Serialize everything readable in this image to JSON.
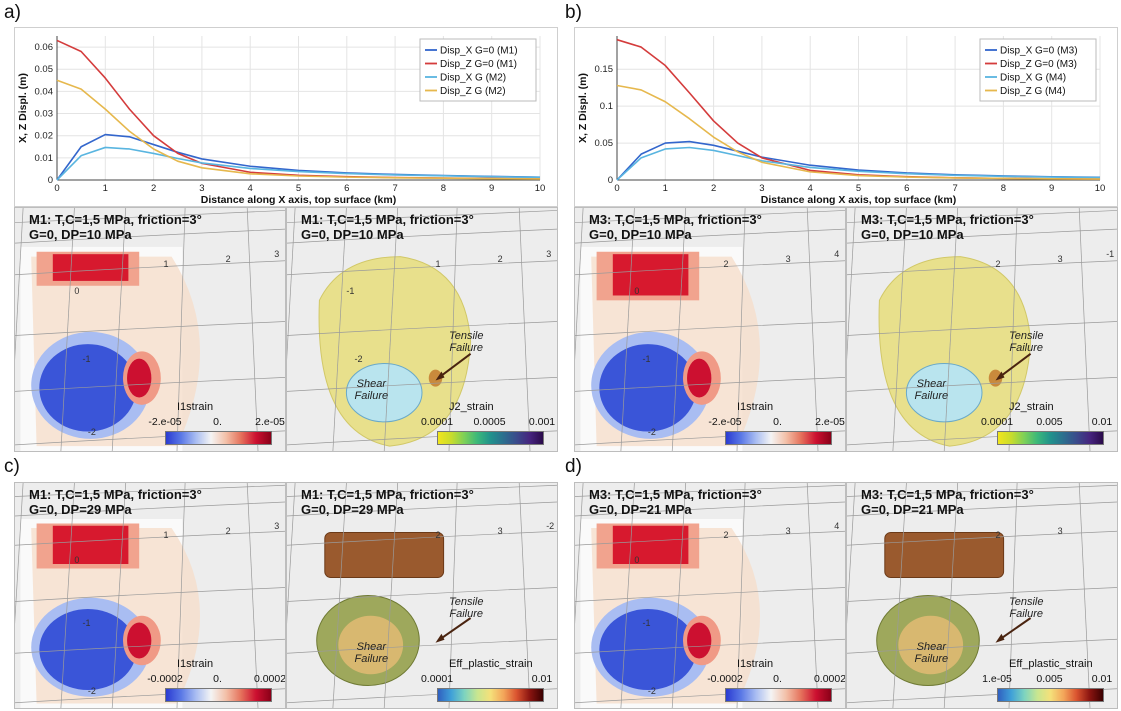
{
  "figure": {
    "panel_labels": [
      "a)",
      "b)",
      "c)",
      "d)"
    ],
    "colors": {
      "disp_x_G0": "#3366cc",
      "disp_z_G0": "#d43c3c",
      "disp_x_G": "#59b5e0",
      "disp_z_G": "#e6b84d",
      "strain_pos": "#d7192e",
      "strain_neg": "#3a55d8",
      "tensile_failure": "#8a4a22",
      "shear_failure": "#c7b27a"
    }
  },
  "chart_data": [
    {
      "type": "line",
      "panel": "a)",
      "xlabel": "Distance along X axis, top surface (km)",
      "ylabel": "X, Z Displ. (m)",
      "xlim": [
        0,
        10
      ],
      "ylim": [
        0,
        0.065
      ],
      "xticks": [
        "0",
        "1",
        "2",
        "3",
        "4",
        "5",
        "6",
        "7",
        "8",
        "9",
        "10"
      ],
      "yticks": [
        "0",
        "0.01",
        "0.02",
        "0.03",
        "0.04",
        "0.05",
        "0.06"
      ],
      "ytick_values": [
        0,
        0.01,
        0.02,
        0.03,
        0.04,
        0.05,
        0.06
      ],
      "grid": true,
      "legend_position": "top-right",
      "x": [
        0,
        0.5,
        1,
        1.5,
        2,
        2.5,
        3,
        4,
        5,
        6,
        7,
        8,
        9,
        10
      ],
      "series": [
        {
          "name": "Disp_X G=0 (M1)",
          "color": "#3366cc",
          "values": [
            0,
            0.015,
            0.0205,
            0.0195,
            0.016,
            0.0125,
            0.0095,
            0.0062,
            0.0043,
            0.0032,
            0.0025,
            0.002,
            0.0016,
            0.0013
          ]
        },
        {
          "name": "Disp_Z  G=0 (M1)",
          "color": "#d43c3c",
          "values": [
            0.063,
            0.058,
            0.046,
            0.032,
            0.02,
            0.012,
            0.0075,
            0.0035,
            0.0021,
            0.0015,
            0.0011,
            0.0009,
            0.0007,
            0.0006
          ]
        },
        {
          "name": "Disp_X   G (M2)",
          "color": "#59b5e0",
          "values": [
            0,
            0.011,
            0.0147,
            0.014,
            0.012,
            0.0097,
            0.0077,
            0.0052,
            0.0038,
            0.0029,
            0.0023,
            0.0019,
            0.0015,
            0.0012
          ]
        },
        {
          "name": "Disp_Z   G (M2)",
          "color": "#e6b84d",
          "values": [
            0.045,
            0.041,
            0.032,
            0.022,
            0.014,
            0.0085,
            0.0055,
            0.0028,
            0.0018,
            0.0013,
            0.001,
            0.0008,
            0.0006,
            0.0005
          ]
        }
      ]
    },
    {
      "type": "line",
      "panel": "b)",
      "xlabel": "Distance along X axis, top surface (km)",
      "ylabel": "X, Z Displ. (m)",
      "xlim": [
        0,
        10
      ],
      "ylim": [
        0,
        0.195
      ],
      "xticks": [
        "0",
        "1",
        "2",
        "3",
        "4",
        "5",
        "6",
        "7",
        "8",
        "9",
        "10"
      ],
      "yticks": [
        "0",
        "0.05",
        "0.1",
        "0.15"
      ],
      "ytick_values": [
        0,
        0.05,
        0.1,
        0.15
      ],
      "grid": true,
      "legend_position": "top-right",
      "x": [
        0,
        0.5,
        1,
        1.5,
        2,
        2.5,
        3,
        4,
        5,
        6,
        7,
        8,
        9,
        10
      ],
      "series": [
        {
          "name": "Disp_X G=0 (M3)",
          "color": "#3366cc",
          "values": [
            0,
            0.035,
            0.05,
            0.052,
            0.047,
            0.039,
            0.031,
            0.02,
            0.0135,
            0.0095,
            0.007,
            0.0055,
            0.0044,
            0.0036
          ]
        },
        {
          "name": "Disp_Z  G=0 (M3)",
          "color": "#d43c3c",
          "values": [
            0.19,
            0.18,
            0.155,
            0.118,
            0.08,
            0.05,
            0.03,
            0.013,
            0.007,
            0.0045,
            0.003,
            0.0022,
            0.0017,
            0.0014
          ]
        },
        {
          "name": "Disp_X   G (M4)",
          "color": "#59b5e0",
          "values": [
            0,
            0.03,
            0.042,
            0.044,
            0.04,
            0.033,
            0.026,
            0.017,
            0.0118,
            0.0085,
            0.0064,
            0.005,
            0.004,
            0.0033
          ]
        },
        {
          "name": "Disp_Z   G (M4)",
          "color": "#e6b84d",
          "values": [
            0.128,
            0.122,
            0.106,
            0.083,
            0.058,
            0.038,
            0.024,
            0.011,
            0.006,
            0.004,
            0.0028,
            0.0021,
            0.0016,
            0.0013
          ]
        }
      ]
    }
  ],
  "panels": [
    {
      "id": "a-left",
      "title_line1": "M1: T,C=1,5 MPa, friction=3°",
      "title_line2": "G=0, DP=10 MPa",
      "grid_numbers": [
        "1",
        "2",
        "3",
        "0",
        "-1",
        "-2"
      ],
      "colorbar": {
        "title": "I1strain",
        "ticks": [
          "-2.e-05",
          "0.",
          "2.e-05"
        ],
        "map": "diverging"
      }
    },
    {
      "id": "a-right",
      "title_line1": "M1: T,C=1,5 MPa, friction=3°",
      "title_line2": "G=0, DP=10 MPa",
      "grid_numbers": [
        "1",
        "2",
        "3",
        "-1",
        "-2"
      ],
      "annotations": [
        "Tensile",
        "Failure",
        "Shear",
        "Failure"
      ],
      "colorbar": {
        "title": "J2_strain",
        "ticks": [
          "0.0001",
          "0.0005",
          "0.001"
        ],
        "map": "viridis-like"
      }
    },
    {
      "id": "b-left",
      "title_line1": "M3: T,C=1,5 MPa, friction=3°",
      "title_line2": "G=0, DP=10 MPa",
      "grid_numbers": [
        "2",
        "3",
        "4",
        "0",
        "-1",
        "-2"
      ],
      "colorbar": {
        "title": "I1strain",
        "ticks": [
          "-2.e-05",
          "0.",
          "2.e-05"
        ],
        "map": "diverging"
      }
    },
    {
      "id": "b-right",
      "title_line1": "M3: T,C=1,5 MPa, friction=3°",
      "title_line2": "G=0, DP=10 MPa",
      "grid_numbers": [
        "2",
        "3",
        "-1"
      ],
      "annotations": [
        "Tensile",
        "Failure",
        "Shear",
        "Failure"
      ],
      "colorbar": {
        "title": "J2_strain",
        "ticks": [
          "0.0001",
          "0.005",
          "0.01"
        ],
        "map": "viridis-like"
      }
    },
    {
      "id": "c-left",
      "title_line1": "M1: T,C=1,5 MPa, friction=3°",
      "title_line2": "G=0, DP=29 MPa",
      "grid_numbers": [
        "1",
        "2",
        "3",
        "0",
        "-1",
        "-2"
      ],
      "colorbar": {
        "title": "I1strain",
        "ticks": [
          "-0.0002",
          "0.",
          "0.0002"
        ],
        "map": "diverging"
      }
    },
    {
      "id": "c-right",
      "title_line1": "M1: T,C=1,5 MPa, friction=3°",
      "title_line2": "G=0, DP=29 MPa",
      "grid_numbers": [
        "2",
        "3",
        "-2"
      ],
      "annotations": [
        "Tensile",
        "Failure",
        "Shear",
        "Failure"
      ],
      "colorbar": {
        "title": "Eff_plastic_strain",
        "ticks": [
          "0.0001",
          "0.01"
        ],
        "map": "spectral"
      }
    },
    {
      "id": "d-left",
      "title_line1": "M3: T,C=1,5 MPa, friction=3°",
      "title_line2": "G=0, DP=21 MPa",
      "grid_numbers": [
        "2",
        "3",
        "4",
        "0",
        "-1",
        "-2"
      ],
      "colorbar": {
        "title": "I1strain",
        "ticks": [
          "-0.0002",
          "0.",
          "0.0002"
        ],
        "map": "diverging"
      }
    },
    {
      "id": "d-right",
      "title_line1": "M3: T,C=1,5 MPa, friction=3°",
      "title_line2": "G=0, DP=21 MPa",
      "grid_numbers": [
        "2",
        "3"
      ],
      "annotations": [
        "Tensile",
        "Failure",
        "Shear",
        "Failure"
      ],
      "colorbar": {
        "title": "Eff_plastic_strain",
        "ticks": [
          "1.e-05",
          "0.005",
          "0.01"
        ],
        "map": "spectral"
      }
    }
  ]
}
